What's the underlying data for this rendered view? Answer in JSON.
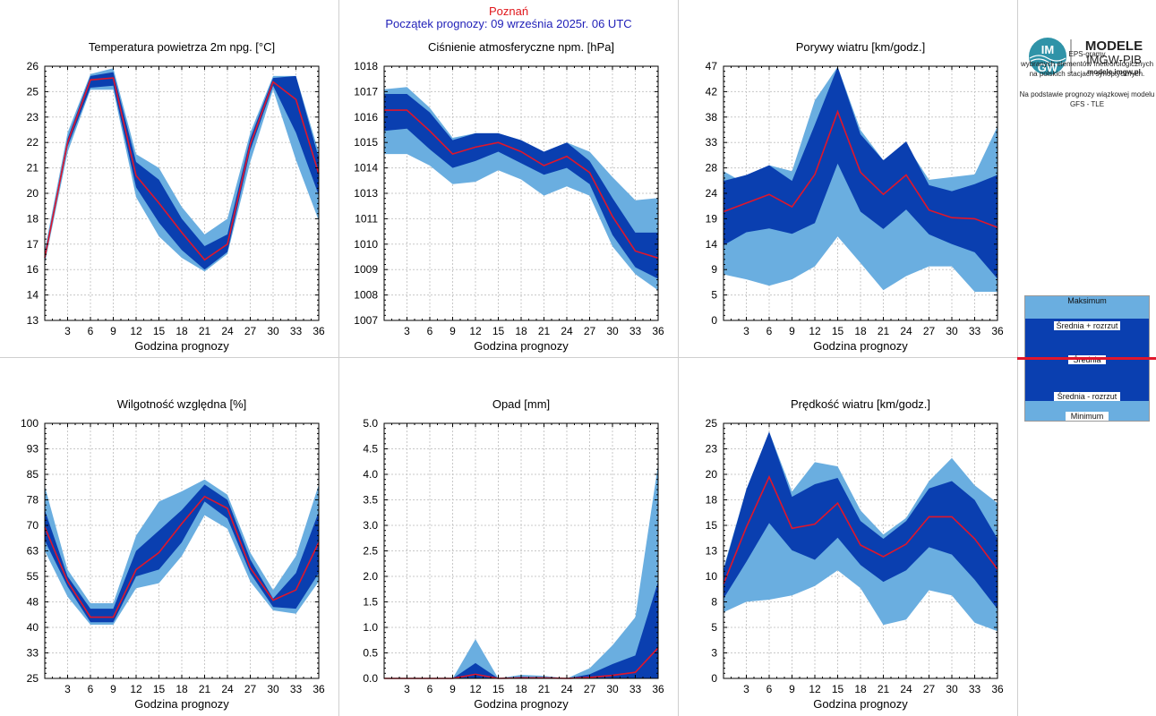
{
  "header": {
    "location": "Poznań",
    "forecast_start": "Początek prognozy: 09 września 2025r. 06 UTC"
  },
  "logo": {
    "line1": "MODELE",
    "line2": "IMGW-PIB",
    "line3": "modele.imgw.pl",
    "mark_top": "IM",
    "mark_bottom": "GW"
  },
  "description": {
    "title": "EPS-gramy",
    "line1": "wybranych elementów meteorologicznych",
    "line2": "na polskich stacjach  synoptycznych.",
    "line3": "Na podstawie prognozy wiązkowej modelu",
    "line4": "GFS - TLE"
  },
  "legend": {
    "max": "Maksimum",
    "mean_plus": "Średnia + rozrzut",
    "mean": "Średnia",
    "mean_minus": "Średnia - rozrzut",
    "min": "Minimum"
  },
  "colors": {
    "envelope": "#6aaee0",
    "spread": "#0a3fb0",
    "mean": "#e0162b",
    "grid": "#c8c8c8"
  },
  "chart_data": [
    {
      "type": "area",
      "title": "Temperatura powietrza 2m npg. [°C]",
      "xlabel": "Godzina prognozy",
      "x": [
        0,
        3,
        6,
        9,
        12,
        15,
        18,
        21,
        24,
        27,
        30,
        33,
        36
      ],
      "xticks": [
        "3",
        "6",
        "9",
        "12",
        "15",
        "18",
        "21",
        "24",
        "27",
        "30",
        "33",
        "36"
      ],
      "yticks": [
        "13",
        "14",
        "16",
        "17",
        "18",
        "20",
        "21",
        "22",
        "23",
        "25",
        "26"
      ],
      "ylim": [
        13,
        26
      ],
      "max": [
        16.6,
        22.6,
        25.6,
        25.9,
        21.5,
        20.8,
        18.8,
        17.4,
        18.2,
        22.6,
        25.5,
        25.5,
        21.6
      ],
      "mean_plus": [
        16.4,
        22.3,
        25.5,
        25.7,
        21.1,
        20.2,
        18.2,
        16.8,
        17.4,
        22.3,
        25.4,
        25.5,
        21.3
      ],
      "mean": [
        16.2,
        22.1,
        25.3,
        25.4,
        20.4,
        19.0,
        17.5,
        16.1,
        16.9,
        22.0,
        25.2,
        24.3,
        20.5
      ],
      "mean_minus": [
        16.1,
        21.9,
        24.9,
        25.0,
        19.8,
        18.0,
        16.6,
        15.6,
        16.5,
        21.7,
        25.0,
        22.6,
        19.4
      ],
      "min": [
        15.9,
        21.6,
        24.8,
        24.8,
        19.3,
        17.3,
        16.2,
        15.5,
        16.4,
        21.1,
        24.8,
        21.2,
        18.1
      ]
    },
    {
      "type": "area",
      "title": "Ciśnienie atmosferyczne npm. [hPa]",
      "xlabel": "Godzina prognozy",
      "x": [
        0,
        3,
        6,
        9,
        12,
        15,
        18,
        21,
        24,
        27,
        30,
        33,
        36
      ],
      "xticks": [
        "3",
        "6",
        "9",
        "12",
        "15",
        "18",
        "21",
        "24",
        "27",
        "30",
        "33",
        "36"
      ],
      "yticks": [
        "1007",
        "1008",
        "1009",
        "1010",
        "1011",
        "1013",
        "1014",
        "1015",
        "1016",
        "1017",
        "1018"
      ],
      "ylim": [
        1007,
        1018
      ],
      "max": [
        1017.0,
        1017.1,
        1016.2,
        1014.9,
        1015.1,
        1015.1,
        1014.8,
        1014.3,
        1014.7,
        1014.3,
        1013.2,
        1012.2,
        1012.3
      ],
      "mean_plus": [
        1016.8,
        1016.8,
        1016.0,
        1014.8,
        1015.1,
        1015.1,
        1014.8,
        1014.3,
        1014.7,
        1013.9,
        1012.3,
        1010.8,
        1010.8
      ],
      "mean": [
        1016.1,
        1016.1,
        1015.2,
        1014.2,
        1014.5,
        1014.7,
        1014.3,
        1013.7,
        1014.1,
        1013.4,
        1011.5,
        1010.0,
        1009.7
      ],
      "mean_minus": [
        1015.2,
        1015.3,
        1014.4,
        1013.6,
        1013.9,
        1014.3,
        1013.8,
        1013.3,
        1013.6,
        1012.9,
        1010.7,
        1009.3,
        1008.8
      ],
      "min": [
        1014.2,
        1014.2,
        1013.7,
        1012.9,
        1013.0,
        1013.5,
        1013.1,
        1012.4,
        1012.8,
        1012.4,
        1010.2,
        1009.0,
        1008.3
      ]
    },
    {
      "type": "area",
      "title": "Porywy wiatru [km/godz.]",
      "xlabel": "Godzina prognozy",
      "x": [
        0,
        3,
        6,
        9,
        12,
        15,
        18,
        21,
        24,
        27,
        30,
        33,
        36
      ],
      "xticks": [
        "3",
        "6",
        "9",
        "12",
        "15",
        "18",
        "21",
        "24",
        "27",
        "30",
        "33",
        "36"
      ],
      "yticks": [
        "0",
        "5",
        "9",
        "14",
        "19",
        "24",
        "28",
        "33",
        "38",
        "42",
        "47"
      ],
      "ylim": [
        0,
        47
      ],
      "max": [
        27.6,
        25.2,
        28.7,
        27.6,
        40.7,
        46.9,
        35.2,
        29.6,
        32.5,
        26.0,
        26.5,
        27.0,
        35.9
      ],
      "mean_plus": [
        25.8,
        26.9,
        28.7,
        25.8,
        36.2,
        46.9,
        34.4,
        29.6,
        33.1,
        25.0,
        23.9,
        25.2,
        26.9
      ],
      "mean": [
        20.1,
        21.7,
        23.3,
        21.0,
        27.0,
        38.6,
        27.4,
        23.3,
        26.9,
        20.4,
        19.0,
        18.8,
        17.2
      ],
      "mean_minus": [
        13.9,
        16.3,
        17.0,
        16.0,
        18.0,
        29.0,
        20.1,
        16.9,
        20.5,
        15.9,
        14.1,
        12.6,
        7.7
      ],
      "min": [
        8.5,
        7.6,
        6.4,
        7.6,
        10.0,
        15.5,
        10.6,
        5.6,
        8.2,
        10.0,
        10.0,
        5.3,
        5.3
      ]
    },
    {
      "type": "area",
      "title": "Wilgotność względna [%]",
      "xlabel": "Godzina prognozy",
      "x": [
        0,
        3,
        6,
        9,
        12,
        15,
        18,
        21,
        24,
        27,
        30,
        33,
        36
      ],
      "xticks": [
        "3",
        "6",
        "9",
        "12",
        "15",
        "18",
        "21",
        "24",
        "27",
        "30",
        "33",
        "36"
      ],
      "yticks": [
        "25",
        "33",
        "40",
        "48",
        "55",
        "63",
        "70",
        "78",
        "85",
        "93",
        "100"
      ],
      "ylim": [
        25,
        100
      ],
      "max": [
        81.5,
        57.0,
        47.1,
        47.1,
        67.0,
        77.0,
        80.0,
        83.5,
        79.0,
        62.0,
        51.0,
        61.0,
        82.0
      ],
      "mean_plus": [
        74.5,
        55.0,
        45.5,
        45.5,
        62.5,
        68.5,
        74.5,
        82.0,
        77.5,
        60.0,
        48.5,
        56.0,
        74.0
      ],
      "mean": [
        69.5,
        53.5,
        43.0,
        43.0,
        57.0,
        62.0,
        70.5,
        78.5,
        75.0,
        57.5,
        48.0,
        51.0,
        65.0
      ],
      "mean_minus": [
        65.5,
        52.0,
        41.5,
        41.5,
        55.0,
        57.0,
        65.0,
        77.0,
        72.0,
        56.0,
        46.0,
        45.5,
        56.0
      ],
      "min": [
        62.5,
        49.0,
        40.8,
        40.8,
        51.5,
        53.0,
        61.0,
        73.0,
        69.0,
        53.5,
        45.0,
        44.0,
        53.5
      ]
    },
    {
      "type": "area",
      "title": "Opad [mm]",
      "xlabel": "Godzina prognozy",
      "x": [
        0,
        3,
        6,
        9,
        12,
        15,
        18,
        21,
        24,
        27,
        30,
        33,
        36
      ],
      "xticks": [
        "3",
        "6",
        "9",
        "12",
        "15",
        "18",
        "21",
        "24",
        "27",
        "30",
        "33",
        "36"
      ],
      "yticks": [
        "0.0",
        "0.5",
        "1.0",
        "1.5",
        "2.0",
        "2.5",
        "3.0",
        "3.5",
        "4.0",
        "4.5",
        "5.0"
      ],
      "ylim": [
        0,
        5
      ],
      "max": [
        0,
        0,
        0,
        0,
        0.77,
        0,
        0.07,
        0.05,
        0,
        0.2,
        0.65,
        1.2,
        4.2
      ],
      "mean_plus": [
        0,
        0,
        0,
        0,
        0.3,
        0,
        0.03,
        0.02,
        0,
        0.08,
        0.28,
        0.45,
        1.9
      ],
      "mean": [
        0,
        0,
        0,
        0,
        0.08,
        0,
        0.01,
        0.01,
        0,
        0.02,
        0.06,
        0.12,
        0.6
      ],
      "mean_minus": [
        0,
        0,
        0,
        0,
        0,
        0,
        0,
        0,
        0,
        0,
        0,
        0,
        0
      ],
      "min": [
        0,
        0,
        0,
        0,
        0,
        0,
        0,
        0,
        0,
        0,
        0,
        0,
        0
      ]
    },
    {
      "type": "area",
      "title": "Prędkość wiatru [km/godz.]",
      "xlabel": "Godzina prognozy",
      "x": [
        0,
        3,
        6,
        9,
        12,
        15,
        18,
        21,
        24,
        27,
        30,
        33,
        36
      ],
      "xticks": [
        "3",
        "6",
        "9",
        "12",
        "15",
        "18",
        "21",
        "24",
        "27",
        "30",
        "33",
        "36"
      ],
      "yticks": [
        "0",
        "3",
        "5",
        "8",
        "10",
        "13",
        "15",
        "18",
        "20",
        "23",
        "25"
      ],
      "ylim": [
        0,
        24.3
      ],
      "max": [
        10.5,
        18.0,
        23.5,
        17.8,
        20.6,
        20.2,
        16.0,
        13.7,
        15.3,
        18.8,
        21.0,
        18.4,
        16.7
      ],
      "mean_plus": [
        10.3,
        18.0,
        23.5,
        17.3,
        18.5,
        19.1,
        15.0,
        13.3,
        15.0,
        18.1,
        18.8,
        17.0,
        13.3
      ],
      "mean": [
        9.0,
        14.4,
        19.2,
        14.3,
        14.7,
        16.7,
        12.7,
        11.6,
        12.8,
        15.4,
        15.4,
        13.3,
        10.4
      ],
      "mean_minus": [
        7.6,
        11.1,
        14.8,
        12.2,
        11.3,
        13.4,
        10.8,
        9.2,
        10.3,
        12.5,
        11.8,
        9.4,
        6.6
      ],
      "min": [
        6.3,
        7.3,
        7.5,
        7.9,
        8.8,
        10.3,
        8.6,
        5.1,
        5.6,
        8.4,
        7.9,
        5.3,
        4.5
      ]
    }
  ]
}
